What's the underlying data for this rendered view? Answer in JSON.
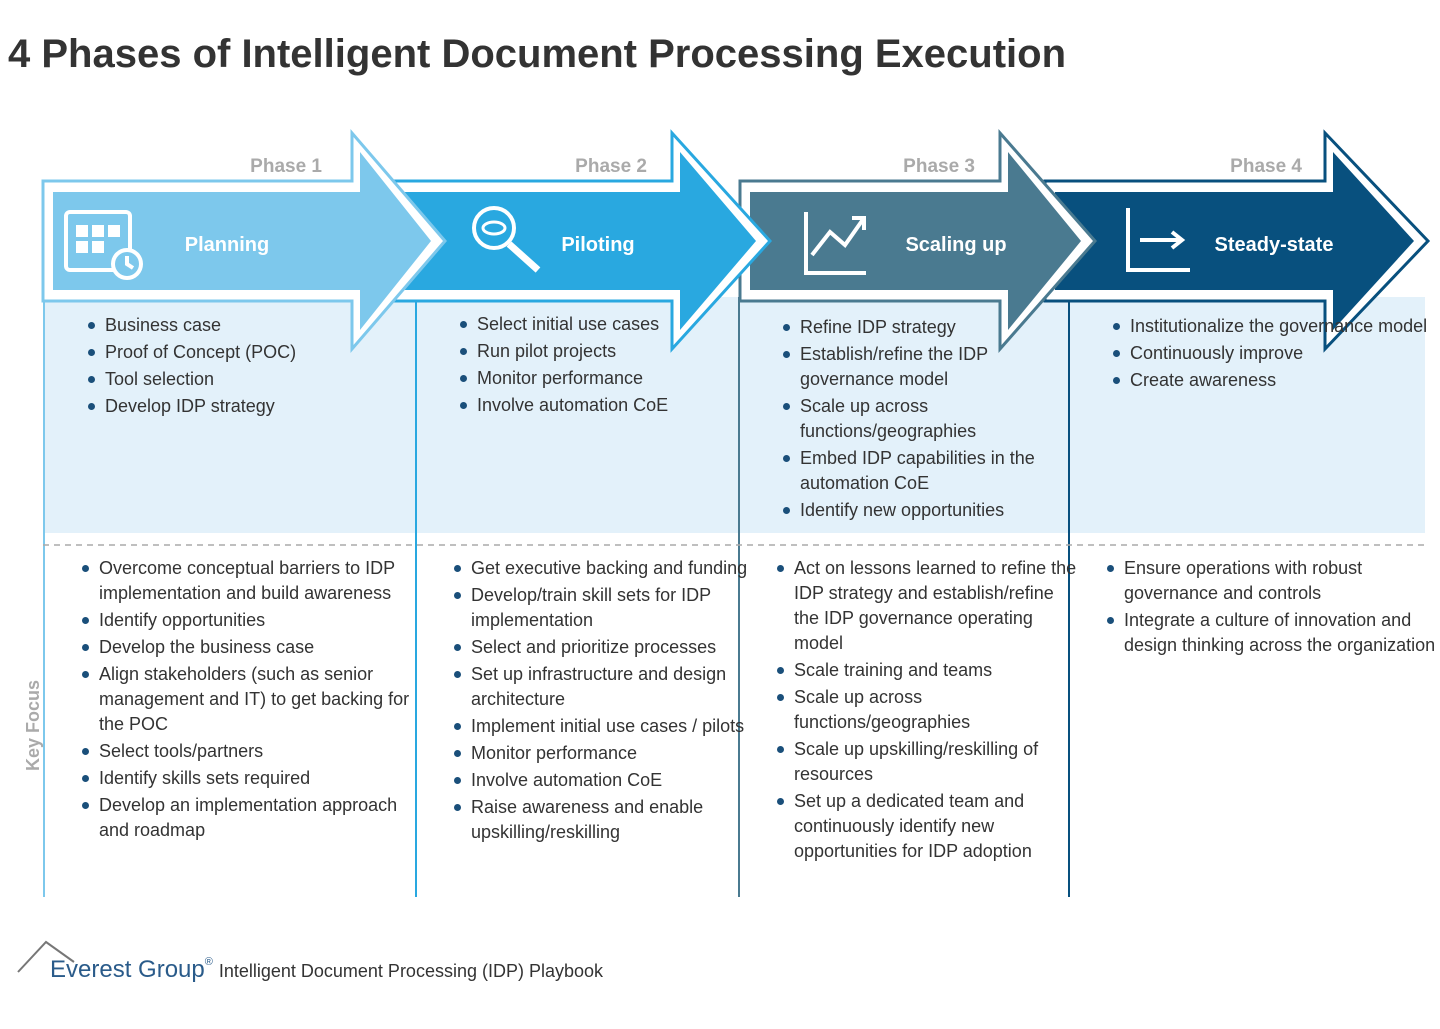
{
  "title": "4 Phases of Intelligent Document Processing Execution",
  "side_label": "Key Focus",
  "phases": [
    {
      "label": "Phase 1",
      "name": "Planning",
      "top_items": [
        "Business case",
        "Proof of Concept (POC)",
        "Tool selection",
        "Develop IDP strategy"
      ],
      "key_focus": [
        "Overcome conceptual barriers to IDP implementation and build awareness",
        "Identify opportunities",
        "Develop the business case",
        "Align stakeholders (such as senior management and IT) to get backing for the POC",
        "Select tools/partners",
        "Identify skills sets required",
        "Develop an implementation approach and roadmap"
      ]
    },
    {
      "label": "Phase 2",
      "name": "Piloting",
      "top_items": [
        "Select initial use cases",
        "Run pilot projects",
        "Monitor performance",
        "Involve automation CoE"
      ],
      "key_focus": [
        "Get executive backing and funding",
        "Develop/train skill sets for IDP implementation",
        "Select and prioritize processes",
        "Set up infrastructure and design architecture",
        "Implement initial use cases / pilots",
        "Monitor performance",
        "Involve automation CoE",
        "Raise awareness and enable upskilling/reskilling"
      ]
    },
    {
      "label": "Phase 3",
      "name": "Scaling up",
      "top_items": [
        "Refine IDP strategy",
        "Establish/refine the IDP governance model",
        "Scale up across functions/geographies",
        "Embed IDP capabilities in the automation CoE",
        "Identify new opportunities"
      ],
      "key_focus": [
        "Act on lessons learned to refine the IDP strategy and establish/refine the IDP governance operating model",
        "Scale training and teams",
        "Scale up across functions/geographies",
        "Scale up upskilling/reskilling of resources",
        "Set up a dedicated team and continuously identify new opportunities for IDP adoption"
      ]
    },
    {
      "label": "Phase 4",
      "name": "Steady-state",
      "top_items": [
        "Institutionalize the governance model",
        "Continuously improve",
        "Create awareness"
      ],
      "key_focus": [
        "Ensure operations with robust governance and controls",
        "Integrate a culture of innovation and design thinking across the organization"
      ]
    }
  ],
  "footer": {
    "brand": "Everest Group",
    "mark": "®",
    "subtitle": "Intelligent Document Processing (IDP) Playbook"
  }
}
